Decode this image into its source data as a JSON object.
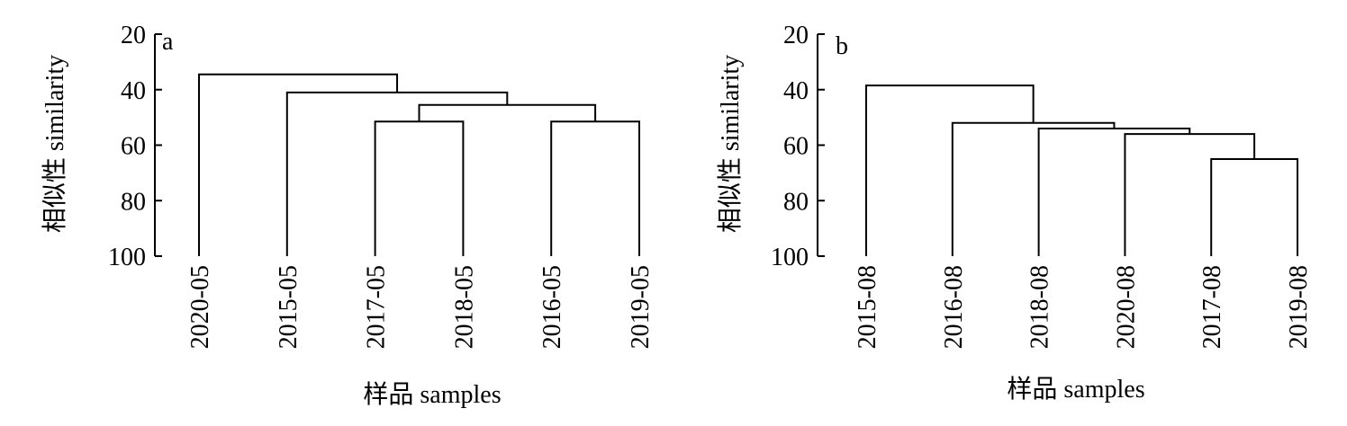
{
  "chart_data": [
    {
      "type": "dendrogram",
      "panel": "a",
      "ylabel": "相似性 similarity",
      "xlabel": "样品 samples",
      "yticks": [
        20,
        40,
        60,
        80,
        100
      ],
      "ylim": [
        20,
        100
      ],
      "y_inverted": true,
      "leaves": [
        "2020-05",
        "2015-05",
        "2017-05",
        "2018-05",
        "2016-05",
        "2019-05"
      ],
      "merges": [
        {
          "id": "m1",
          "left": "L:2017-05",
          "right": "L:2018-05",
          "similarity": 51.5
        },
        {
          "id": "m2",
          "left": "L:2016-05",
          "right": "L:2019-05",
          "similarity": 51.5
        },
        {
          "id": "m3",
          "left": "N:m1",
          "right": "N:m2",
          "similarity": 45.5
        },
        {
          "id": "m4",
          "left": "L:2015-05",
          "right": "N:m3",
          "similarity": 41.0
        },
        {
          "id": "m5",
          "left": "L:2020-05",
          "right": "N:m4",
          "similarity": 34.5
        }
      ]
    },
    {
      "type": "dendrogram",
      "panel": "b",
      "ylabel": "相似性 similarity",
      "xlabel": "样品 samples",
      "yticks": [
        20,
        40,
        60,
        80,
        100
      ],
      "ylim": [
        20,
        100
      ],
      "y_inverted": true,
      "leaves": [
        "2015-08",
        "2016-08",
        "2018-08",
        "2020-08",
        "2017-08",
        "2019-08"
      ],
      "merges": [
        {
          "id": "m1",
          "left": "L:2017-08",
          "right": "L:2019-08",
          "similarity": 65.0
        },
        {
          "id": "m2",
          "left": "L:2020-08",
          "right": "N:m1",
          "similarity": 56.0
        },
        {
          "id": "m3",
          "left": "L:2018-08",
          "right": "N:m2",
          "similarity": 54.0
        },
        {
          "id": "m4",
          "left": "L:2016-08",
          "right": "N:m3",
          "similarity": 52.0
        },
        {
          "id": "m5",
          "left": "L:2015-08",
          "right": "N:m4",
          "similarity": 38.5
        }
      ]
    }
  ]
}
